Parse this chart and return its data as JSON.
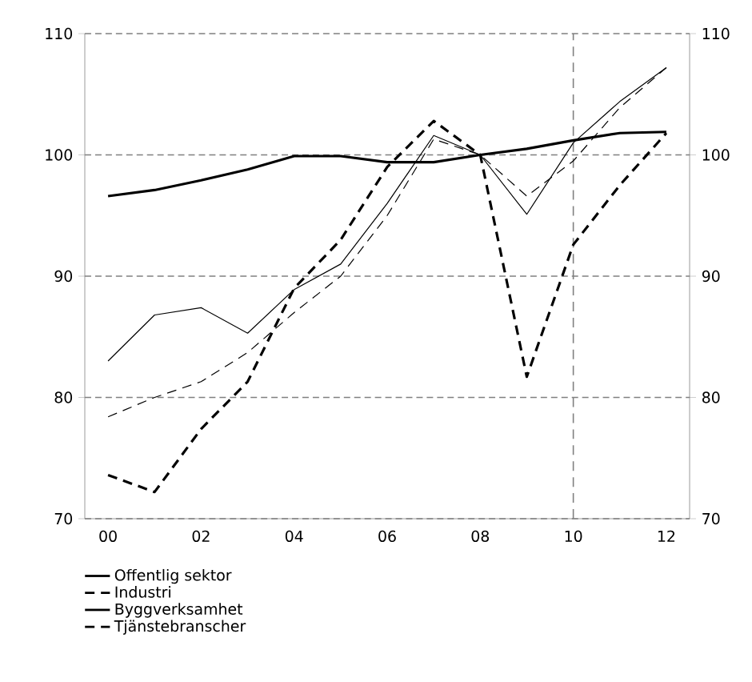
{
  "chart_data": {
    "type": "line",
    "categories": [
      "00",
      null,
      "02",
      null,
      "04",
      null,
      "06",
      null,
      "08",
      null,
      "10",
      null,
      "12"
    ],
    "series": [
      {
        "name": "Offentlig sektor",
        "color": "#000000",
        "line_style": "solid",
        "values": [
          96.6,
          97.1,
          97.9,
          98.8,
          99.9,
          99.9,
          99.4,
          99.4,
          100,
          100.5,
          101.2,
          101.8,
          101.9
        ]
      },
      {
        "name": "Industri",
        "color": "#000000",
        "line_style": "dashed",
        "values": [
          73.6,
          72.2,
          77.4,
          81.3,
          89.0,
          93.0,
          99.0,
          102.8,
          100,
          81.7,
          92.6,
          97.5,
          101.8
        ]
      },
      {
        "name": "Byggverksamhet",
        "color": "#000000",
        "line_style": "solid",
        "values": [
          83.0,
          86.8,
          87.4,
          85.3,
          88.9,
          91.0,
          96.0,
          101.6,
          100,
          95.1,
          101.0,
          104.4,
          107.2
        ]
      },
      {
        "name": "Tjänstebranscher",
        "color": "#000000",
        "line_style": "dashed",
        "values": [
          78.4,
          80.0,
          81.3,
          83.7,
          87.0,
          90.0,
          95.0,
          101.3,
          100,
          96.6,
          99.5,
          103.9,
          107.2
        ]
      }
    ],
    "ylim": [
      70,
      110
    ],
    "yticks": [
      70,
      80,
      90,
      100,
      110
    ],
    "y2lim": [
      70,
      110
    ],
    "y2ticks": [
      70,
      80,
      90,
      100,
      110
    ],
    "ref_lines": [
      {
        "axis": "x",
        "value": "10",
        "color": "#808080",
        "line_style": "dashed"
      }
    ],
    "grid": "y",
    "legend": "bottom",
    "marker": "none"
  }
}
